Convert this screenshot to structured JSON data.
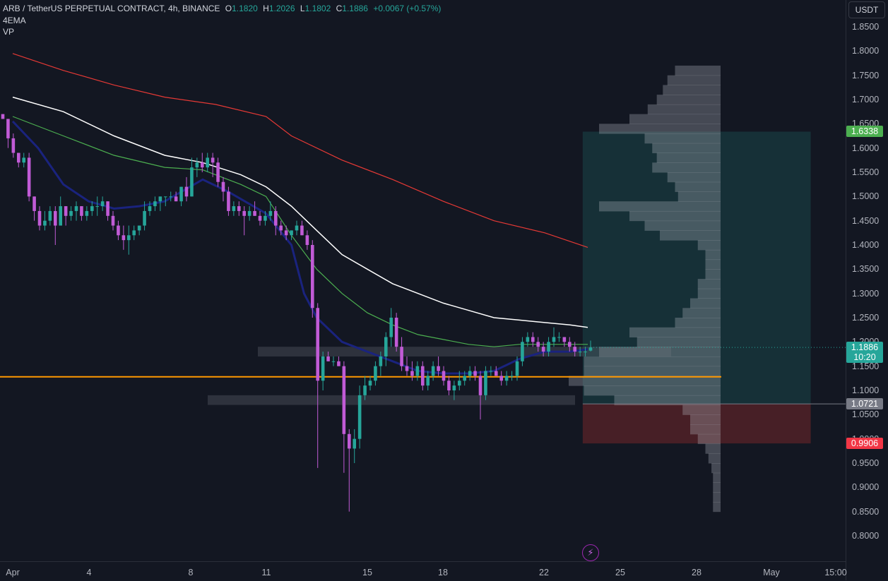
{
  "legend": {
    "symbol": "ARB / TetherUS PERPETUAL CONTRACT, 4h, BINANCE",
    "o_label": "O",
    "o": "1.1820",
    "h_label": "H",
    "h": "1.2026",
    "l_label": "L",
    "l": "1.1802",
    "c_label": "C",
    "c": "1.1886",
    "change": "+0.0067 (+0.57%)",
    "indicator1": "4EMA",
    "indicator2": "VP"
  },
  "currency": "USDT",
  "price_tags": {
    "target": "1.6338",
    "current": "1.1886",
    "countdown": "10:20",
    "entry": "1.0721",
    "stop": "0.9906"
  },
  "colors": {
    "up": "#26a69a",
    "down": "#c15bd6",
    "ema_white": "#ffffff",
    "ema_green": "#4caf50",
    "ema_navy": "#1a237e",
    "ema_red": "#e53935",
    "support": "#ff9800",
    "target_zone": "#26a69a",
    "stop_zone": "#e53935",
    "volume_profile": "#b2b5be"
  },
  "icons": {
    "bottom": "lightning-icon"
  },
  "chart_data": {
    "type": "candlestick",
    "title": "ARB / TetherUS PERPETUAL CONTRACT, 4h, BINANCE",
    "y_ticks": [
      "1.8500",
      "1.8000",
      "1.7500",
      "1.7000",
      "1.6500",
      "1.6000",
      "1.5500",
      "1.5000",
      "1.4500",
      "1.4000",
      "1.3500",
      "1.3000",
      "1.2500",
      "1.2000",
      "1.1500",
      "1.1000",
      "1.0500",
      "1.0000",
      "0.9500",
      "0.9000",
      "0.8500",
      "0.8000"
    ],
    "x_ticks": [
      "Apr",
      "4",
      "8",
      "11",
      "15",
      "18",
      "22",
      "25",
      "28",
      "May",
      "15:00"
    ],
    "ylim": [
      0.78,
      1.87
    ],
    "x_range_days": [
      1,
      33.6
    ],
    "candles": [
      [
        1.67,
        1.67,
        1.66,
        1.66
      ],
      [
        1.66,
        1.66,
        1.6,
        1.62
      ],
      [
        1.62,
        1.63,
        1.58,
        1.59
      ],
      [
        1.59,
        1.59,
        1.56,
        1.57
      ],
      [
        1.57,
        1.59,
        1.56,
        1.58
      ],
      [
        1.58,
        1.59,
        1.49,
        1.5
      ],
      [
        1.5,
        1.5,
        1.45,
        1.47
      ],
      [
        1.47,
        1.48,
        1.43,
        1.44
      ],
      [
        1.44,
        1.47,
        1.43,
        1.45
      ],
      [
        1.45,
        1.48,
        1.44,
        1.47
      ],
      [
        1.47,
        1.48,
        1.4,
        1.44
      ],
      [
        1.44,
        1.5,
        1.44,
        1.48
      ],
      [
        1.48,
        1.48,
        1.44,
        1.46
      ],
      [
        1.46,
        1.48,
        1.45,
        1.47
      ],
      [
        1.47,
        1.49,
        1.45,
        1.48
      ],
      [
        1.48,
        1.48,
        1.45,
        1.46
      ],
      [
        1.46,
        1.48,
        1.45,
        1.47
      ],
      [
        1.47,
        1.49,
        1.46,
        1.48
      ],
      [
        1.48,
        1.5,
        1.46,
        1.48
      ],
      [
        1.48,
        1.5,
        1.47,
        1.49
      ],
      [
        1.49,
        1.49,
        1.45,
        1.46
      ],
      [
        1.46,
        1.47,
        1.43,
        1.44
      ],
      [
        1.44,
        1.45,
        1.41,
        1.42
      ],
      [
        1.42,
        1.44,
        1.39,
        1.41
      ],
      [
        1.41,
        1.44,
        1.38,
        1.42
      ],
      [
        1.42,
        1.44,
        1.41,
        1.43
      ],
      [
        1.43,
        1.44,
        1.42,
        1.44
      ],
      [
        1.44,
        1.49,
        1.43,
        1.47
      ],
      [
        1.47,
        1.49,
        1.46,
        1.48
      ],
      [
        1.48,
        1.5,
        1.47,
        1.49
      ],
      [
        1.49,
        1.5,
        1.47,
        1.5
      ],
      [
        1.5,
        1.5,
        1.48,
        1.5
      ],
      [
        1.5,
        1.51,
        1.49,
        1.5
      ],
      [
        1.5,
        1.51,
        1.49,
        1.49
      ],
      [
        1.49,
        1.52,
        1.48,
        1.52
      ],
      [
        1.52,
        1.54,
        1.49,
        1.5
      ],
      [
        1.5,
        1.58,
        1.5,
        1.56
      ],
      [
        1.56,
        1.58,
        1.54,
        1.57
      ],
      [
        1.57,
        1.59,
        1.55,
        1.56
      ],
      [
        1.56,
        1.59,
        1.55,
        1.58
      ],
      [
        1.58,
        1.59,
        1.54,
        1.57
      ],
      [
        1.57,
        1.58,
        1.52,
        1.53
      ],
      [
        1.53,
        1.54,
        1.49,
        1.51
      ],
      [
        1.51,
        1.52,
        1.46,
        1.47
      ],
      [
        1.47,
        1.49,
        1.46,
        1.48
      ],
      [
        1.48,
        1.49,
        1.46,
        1.47
      ],
      [
        1.47,
        1.48,
        1.42,
        1.46
      ],
      [
        1.46,
        1.48,
        1.45,
        1.47
      ],
      [
        1.47,
        1.49,
        1.46,
        1.46
      ],
      [
        1.46,
        1.47,
        1.44,
        1.45
      ],
      [
        1.45,
        1.47,
        1.44,
        1.46
      ],
      [
        1.46,
        1.49,
        1.45,
        1.47
      ],
      [
        1.47,
        1.48,
        1.42,
        1.44
      ],
      [
        1.44,
        1.45,
        1.42,
        1.43
      ],
      [
        1.43,
        1.44,
        1.41,
        1.42
      ],
      [
        1.42,
        1.43,
        1.41,
        1.43
      ],
      [
        1.43,
        1.45,
        1.42,
        1.44
      ],
      [
        1.44,
        1.45,
        1.42,
        1.42
      ],
      [
        1.42,
        1.43,
        1.39,
        1.4
      ],
      [
        1.4,
        1.41,
        1.25,
        1.27
      ],
      [
        1.27,
        1.28,
        0.94,
        1.12
      ],
      [
        1.12,
        1.18,
        1.1,
        1.17
      ],
      [
        1.17,
        1.18,
        1.16,
        1.16
      ],
      [
        1.16,
        1.17,
        1.15,
        1.16
      ],
      [
        1.16,
        1.17,
        1.15,
        1.15
      ],
      [
        1.15,
        1.16,
        0.93,
        1.01
      ],
      [
        1.01,
        1.02,
        0.85,
        0.98
      ],
      [
        0.98,
        1.02,
        0.95,
        1.0
      ],
      [
        1.0,
        1.11,
        0.98,
        1.09
      ],
      [
        1.09,
        1.13,
        1.08,
        1.11
      ],
      [
        1.11,
        1.13,
        1.1,
        1.12
      ],
      [
        1.12,
        1.16,
        1.11,
        1.15
      ],
      [
        1.15,
        1.18,
        1.13,
        1.17
      ],
      [
        1.17,
        1.22,
        1.15,
        1.21
      ],
      [
        1.21,
        1.27,
        1.19,
        1.25
      ],
      [
        1.25,
        1.26,
        1.18,
        1.19
      ],
      [
        1.19,
        1.21,
        1.14,
        1.15
      ],
      [
        1.15,
        1.17,
        1.13,
        1.14
      ],
      [
        1.14,
        1.16,
        1.12,
        1.13
      ],
      [
        1.13,
        1.16,
        1.12,
        1.15
      ],
      [
        1.15,
        1.16,
        1.1,
        1.11
      ],
      [
        1.11,
        1.14,
        1.1,
        1.13
      ],
      [
        1.13,
        1.16,
        1.12,
        1.15
      ],
      [
        1.15,
        1.17,
        1.13,
        1.14
      ],
      [
        1.14,
        1.15,
        1.11,
        1.12
      ],
      [
        1.12,
        1.13,
        1.09,
        1.1
      ],
      [
        1.1,
        1.12,
        1.08,
        1.11
      ],
      [
        1.11,
        1.14,
        1.1,
        1.12
      ],
      [
        1.12,
        1.14,
        1.11,
        1.13
      ],
      [
        1.13,
        1.15,
        1.12,
        1.14
      ],
      [
        1.14,
        1.15,
        1.12,
        1.13
      ],
      [
        1.13,
        1.14,
        1.04,
        1.09
      ],
      [
        1.09,
        1.15,
        1.08,
        1.14
      ],
      [
        1.14,
        1.15,
        1.13,
        1.14
      ],
      [
        1.14,
        1.15,
        1.13,
        1.13
      ],
      [
        1.13,
        1.14,
        1.11,
        1.12
      ],
      [
        1.12,
        1.14,
        1.11,
        1.13
      ],
      [
        1.13,
        1.14,
        1.12,
        1.13
      ],
      [
        1.13,
        1.17,
        1.12,
        1.16
      ],
      [
        1.16,
        1.21,
        1.15,
        1.2
      ],
      [
        1.2,
        1.22,
        1.19,
        1.21
      ],
      [
        1.21,
        1.22,
        1.19,
        1.2
      ],
      [
        1.2,
        1.21,
        1.18,
        1.19
      ],
      [
        1.19,
        1.2,
        1.17,
        1.18
      ],
      [
        1.18,
        1.21,
        1.17,
        1.2
      ],
      [
        1.2,
        1.23,
        1.19,
        1.21
      ],
      [
        1.21,
        1.22,
        1.2,
        1.21
      ],
      [
        1.21,
        1.21,
        1.19,
        1.2
      ],
      [
        1.2,
        1.21,
        1.18,
        1.19
      ],
      [
        1.19,
        1.2,
        1.17,
        1.18
      ],
      [
        1.18,
        1.19,
        1.17,
        1.18
      ],
      [
        1.18,
        1.19,
        1.17,
        1.18
      ],
      [
        1.182,
        1.2026,
        1.1802,
        1.1886
      ]
    ],
    "ema_white": [
      [
        1,
        1.705
      ],
      [
        3,
        1.675
      ],
      [
        5,
        1.625
      ],
      [
        7,
        1.585
      ],
      [
        8.5,
        1.57
      ],
      [
        10,
        1.545
      ],
      [
        11,
        1.52
      ],
      [
        12,
        1.48
      ],
      [
        13,
        1.43
      ],
      [
        14,
        1.38
      ],
      [
        15,
        1.35
      ],
      [
        16,
        1.32
      ],
      [
        17,
        1.3
      ],
      [
        18,
        1.28
      ],
      [
        19,
        1.265
      ],
      [
        20,
        1.25
      ],
      [
        21,
        1.245
      ],
      [
        22,
        1.24
      ],
      [
        23,
        1.235
      ],
      [
        23.7,
        1.23
      ]
    ],
    "ema_green": [
      [
        1,
        1.665
      ],
      [
        3,
        1.625
      ],
      [
        5,
        1.585
      ],
      [
        7,
        1.56
      ],
      [
        8.5,
        1.555
      ],
      [
        10,
        1.525
      ],
      [
        11,
        1.5
      ],
      [
        12,
        1.42
      ],
      [
        13,
        1.35
      ],
      [
        14,
        1.3
      ],
      [
        15,
        1.26
      ],
      [
        16,
        1.235
      ],
      [
        17,
        1.215
      ],
      [
        18,
        1.205
      ],
      [
        19,
        1.195
      ],
      [
        20,
        1.19
      ],
      [
        21,
        1.195
      ],
      [
        22,
        1.195
      ],
      [
        23,
        1.195
      ],
      [
        23.7,
        1.195
      ]
    ],
    "ema_navy": [
      [
        1,
        1.655
      ],
      [
        2,
        1.6
      ],
      [
        3,
        1.525
      ],
      [
        4,
        1.49
      ],
      [
        5,
        1.475
      ],
      [
        6,
        1.48
      ],
      [
        7,
        1.49
      ],
      [
        8.5,
        1.535
      ],
      [
        9.5,
        1.51
      ],
      [
        11,
        1.465
      ],
      [
        12,
        1.4
      ],
      [
        12.5,
        1.3
      ],
      [
        13,
        1.25
      ],
      [
        14,
        1.2
      ],
      [
        15,
        1.18
      ],
      [
        16,
        1.16
      ],
      [
        17,
        1.14
      ],
      [
        18,
        1.135
      ],
      [
        19,
        1.135
      ],
      [
        20,
        1.14
      ],
      [
        21,
        1.165
      ],
      [
        22,
        1.18
      ],
      [
        23,
        1.18
      ],
      [
        23.7,
        1.185
      ]
    ],
    "ema_red": [
      [
        1,
        1.795
      ],
      [
        3,
        1.76
      ],
      [
        5,
        1.73
      ],
      [
        7,
        1.705
      ],
      [
        9,
        1.69
      ],
      [
        11,
        1.665
      ],
      [
        12,
        1.625
      ],
      [
        14,
        1.575
      ],
      [
        16,
        1.535
      ],
      [
        18,
        1.49
      ],
      [
        20,
        1.45
      ],
      [
        22,
        1.425
      ],
      [
        23.7,
        1.395
      ]
    ],
    "support_line": 1.128,
    "zones": [
      [
        1.17,
        1.19
      ],
      [
        1.07,
        1.09
      ]
    ],
    "position": {
      "target": 1.6338,
      "entry": 1.0721,
      "stop": 0.9906,
      "x_start": 23.5,
      "x_end": 32.5
    },
    "volume_profile": {
      "bins": [
        [
          1.76,
          0.3
        ],
        [
          1.74,
          0.35
        ],
        [
          1.72,
          0.38
        ],
        [
          1.7,
          0.42
        ],
        [
          1.68,
          0.48
        ],
        [
          1.66,
          0.6
        ],
        [
          1.64,
          0.8
        ],
        [
          1.62,
          0.5
        ],
        [
          1.6,
          0.45
        ],
        [
          1.58,
          0.42
        ],
        [
          1.56,
          0.45
        ],
        [
          1.54,
          0.35
        ],
        [
          1.52,
          0.3
        ],
        [
          1.5,
          0.28
        ],
        [
          1.48,
          0.8
        ],
        [
          1.46,
          0.6
        ],
        [
          1.44,
          0.5
        ],
        [
          1.42,
          0.4
        ],
        [
          1.4,
          0.15
        ],
        [
          1.38,
          0.1
        ],
        [
          1.36,
          0.1
        ],
        [
          1.34,
          0.1
        ],
        [
          1.32,
          0.15
        ],
        [
          1.3,
          0.15
        ],
        [
          1.28,
          0.2
        ],
        [
          1.26,
          0.25
        ],
        [
          1.24,
          0.3
        ],
        [
          1.22,
          0.6
        ],
        [
          1.2,
          0.55
        ],
        [
          1.18,
          0.8
        ],
        [
          1.16,
          0.9
        ],
        [
          1.14,
          0.9
        ],
        [
          1.12,
          1.0
        ],
        [
          1.1,
          0.9
        ],
        [
          1.08,
          0.7
        ],
        [
          1.06,
          0.25
        ],
        [
          1.04,
          0.2
        ],
        [
          1.02,
          0.2
        ],
        [
          1.0,
          0.15
        ],
        [
          0.98,
          0.1
        ],
        [
          0.96,
          0.08
        ],
        [
          0.94,
          0.06
        ],
        [
          0.92,
          0.05
        ],
        [
          0.9,
          0.05
        ],
        [
          0.88,
          0.05
        ],
        [
          0.86,
          0.05
        ]
      ]
    },
    "last_price": 1.1886
  }
}
